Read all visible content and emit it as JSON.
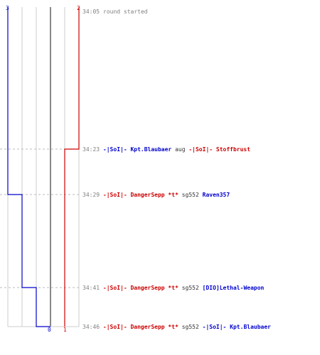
{
  "colors": {
    "team_blue": "#0000cc",
    "team_red": "#cc0000",
    "grid": "#cccccc",
    "zero_line": "#888888",
    "time_gray": "#808080",
    "neutral_text": "#333333"
  },
  "axis": {
    "top_left": "3",
    "top_right": "2",
    "bottom_zero": "0",
    "bottom_one": "1"
  },
  "round_start": {
    "time": "34:05",
    "text": "round started"
  },
  "events": [
    {
      "time": "34:23",
      "killer": "-|SoI|- Kpt.Blaubaer",
      "killer_team": "blue",
      "weapon": "aug",
      "victim": "-|SoI|- Stoffbrust",
      "victim_team": "red"
    },
    {
      "time": "34:29",
      "killer": "-|SoI|- DangerSepp *t*",
      "killer_team": "red",
      "weapon": "sg552",
      "victim": "Raven357",
      "victim_team": "blue"
    },
    {
      "time": "34:41",
      "killer": "-|SoI|- DangerSepp *t*",
      "killer_team": "red",
      "weapon": "sg552",
      "victim": "[DIO]Lethal-Weapon",
      "victim_team": "blue"
    },
    {
      "time": "34:46",
      "killer": "-|SoI|- DangerSepp *t*",
      "killer_team": "red",
      "weapon": "sg552",
      "victim": "-|SoI|- Kpt.Blaubaer",
      "victim_team": "blue"
    }
  ],
  "series": {
    "blue_alive": [
      3,
      3,
      2,
      1,
      0
    ],
    "red_alive": [
      2,
      1,
      1,
      1,
      1
    ]
  }
}
